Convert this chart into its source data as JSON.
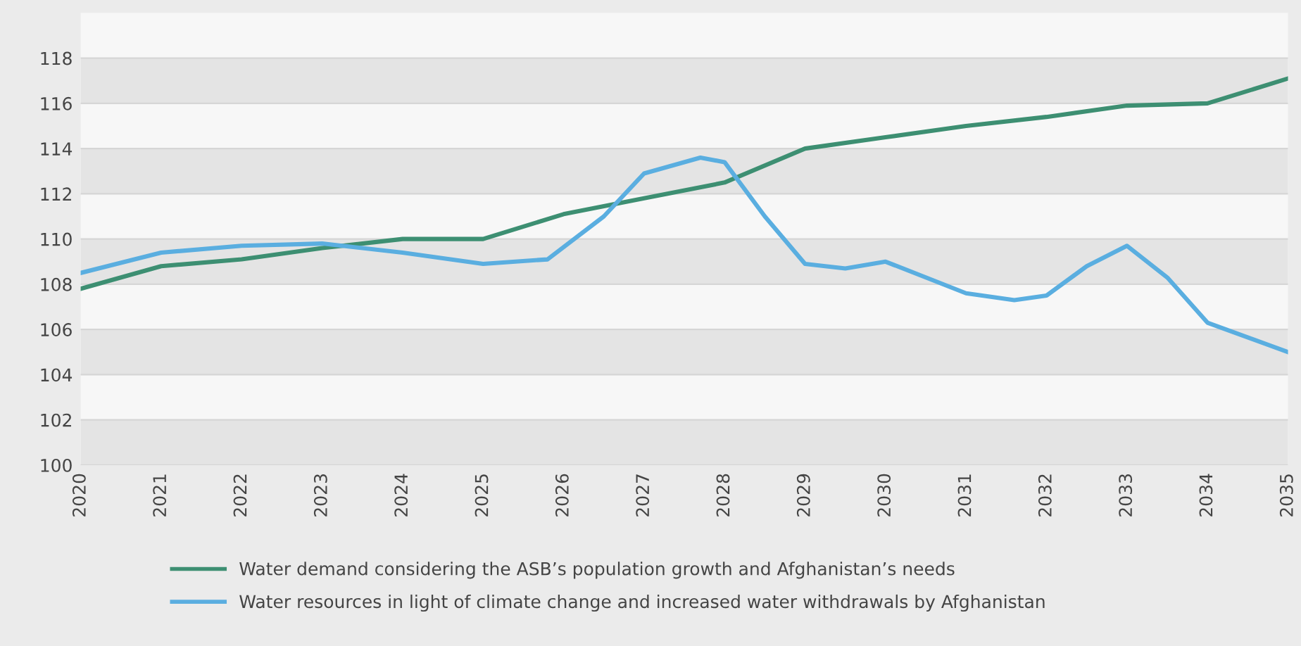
{
  "chart_data": {
    "type": "line",
    "xlim": [
      2020,
      2035
    ],
    "xticks": [
      2020,
      2021,
      2022,
      2023,
      2024,
      2025,
      2026,
      2027,
      2028,
      2029,
      2030,
      2031,
      2032,
      2033,
      2034,
      2035
    ],
    "ylim": [
      100,
      120
    ],
    "yticks": [
      100,
      102,
      104,
      106,
      108,
      110,
      112,
      114,
      116,
      118
    ],
    "grid": "y",
    "legend": "bottom",
    "marker": "none",
    "line_style": "solid",
    "series": [
      {
        "name": "Water demand considering the ASB’s population growth and Afghanistan’s needs",
        "color": "#3d8f72",
        "x": [
          2020,
          2021,
          2022,
          2023,
          2024,
          2025,
          2026,
          2027,
          2028,
          2029,
          2030,
          2031,
          2032,
          2033,
          2034,
          2035
        ],
        "values": [
          107.8,
          108.8,
          109.1,
          109.6,
          110.0,
          110.0,
          111.1,
          111.8,
          112.5,
          114.0,
          114.5,
          115.0,
          115.4,
          115.9,
          116.0,
          117.1
        ]
      },
      {
        "name": "Water resources in light of climate change and increased water withdrawals by Afghanistan",
        "color": "#5aaee0",
        "x": [
          2020,
          2021,
          2022,
          2023,
          2024,
          2025,
          2025.8,
          2026.5,
          2027,
          2027.7,
          2028,
          2028.5,
          2029,
          2029.5,
          2030,
          2031,
          2031.6,
          2032,
          2032.5,
          2033,
          2033.5,
          2034,
          2035
        ],
        "values": [
          108.5,
          109.4,
          109.7,
          109.8,
          109.4,
          108.9,
          109.1,
          111.0,
          112.9,
          113.6,
          113.4,
          111.0,
          108.9,
          108.7,
          109.0,
          107.6,
          107.3,
          107.5,
          108.8,
          109.7,
          108.3,
          106.3,
          105.0
        ]
      }
    ]
  }
}
